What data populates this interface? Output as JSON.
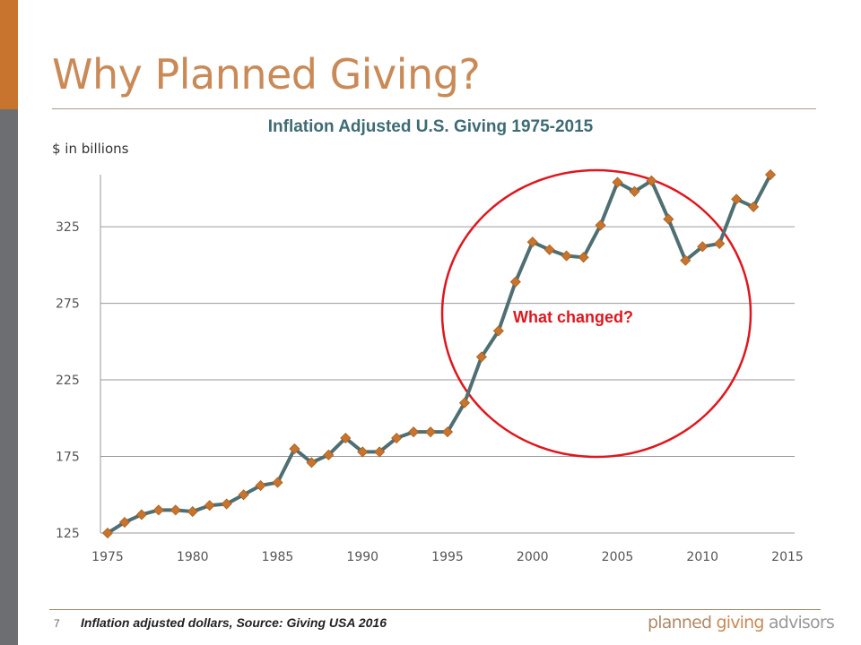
{
  "slide": {
    "title": "Why Planned Giving?",
    "page_number": "7",
    "source_note": "Inflation adjusted dollars, Source: Giving USA 2016",
    "logo": {
      "word1": "planned",
      "word2": "giving",
      "word3": "advisors"
    }
  },
  "colors": {
    "accent": "#c8742e",
    "sidebar": "#6d6e71",
    "line": "#4f6f73",
    "marker": "#c8742e",
    "annotation": "#e0161e",
    "chart_title": "#3e6b74"
  },
  "chart_data": {
    "type": "line",
    "title": "Inflation Adjusted U.S. Giving 1975-2015",
    "ylabel": "$ in billions",
    "xlabel": "",
    "x": [
      1975,
      1976,
      1977,
      1978,
      1979,
      1980,
      1981,
      1982,
      1983,
      1984,
      1985,
      1986,
      1987,
      1988,
      1989,
      1990,
      1991,
      1992,
      1993,
      1994,
      1995,
      1996,
      1997,
      1998,
      1999,
      2000,
      2001,
      2002,
      2003,
      2004,
      2005,
      2006,
      2007,
      2008,
      2009,
      2010,
      2011,
      2012,
      2013,
      2014
    ],
    "values": [
      125,
      132,
      137,
      140,
      140,
      139,
      143,
      144,
      150,
      156,
      158,
      180,
      171,
      176,
      187,
      178,
      178,
      187,
      191,
      191,
      191,
      210,
      240,
      257,
      289,
      315,
      310,
      306,
      305,
      326,
      354,
      348,
      355,
      330,
      303,
      312,
      314,
      343,
      338,
      359
    ],
    "xlim": [
      1975,
      2015
    ],
    "ylim": [
      125,
      359
    ],
    "xticks": [
      "1975",
      "1980",
      "1985",
      "1990",
      "1995",
      "2000",
      "2005",
      "2010",
      "2015"
    ],
    "yticks": [
      "125",
      "175",
      "225",
      "275",
      "325"
    ],
    "grid": "horizontal",
    "marker": "diamond",
    "annotation": {
      "text": "What changed?",
      "shape": "ellipse"
    }
  }
}
